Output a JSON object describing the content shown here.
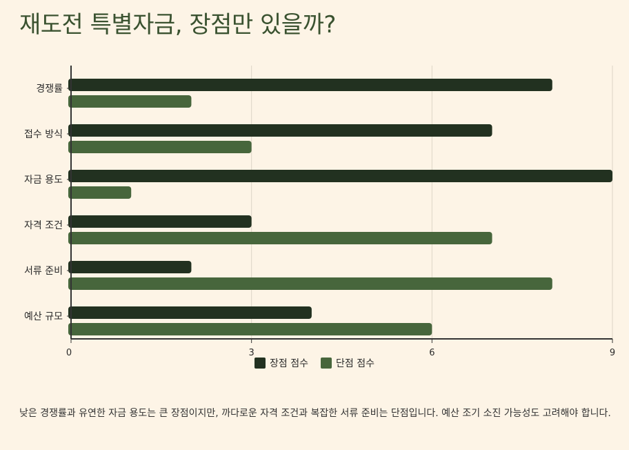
{
  "page": {
    "title": "재도전 특별자금, 장점만 있을까?",
    "caption": "낮은 경쟁률과 유연한 자금 용도는 큰 장점이지만, 까다로운 자격 조건과 복잡한 서류 준비는 단점입니다. 예산 조기 소진 가능성도 고려해야 합니다."
  },
  "chart_data": {
    "type": "bar",
    "orientation": "horizontal",
    "title": "",
    "xlabel": "",
    "ylabel": "",
    "categories": [
      "경쟁률",
      "접수 방식",
      "자금 용도",
      "자격 조건",
      "서류 준비",
      "예산 규모"
    ],
    "series": [
      {
        "name": "장점 점수",
        "values": [
          8,
          7,
          9,
          3,
          2,
          4
        ],
        "color": "#223120"
      },
      {
        "name": "단점 점수",
        "values": [
          2,
          3,
          1,
          7,
          8,
          6
        ],
        "color": "#47663c"
      }
    ],
    "xlim": [
      0,
      9
    ],
    "xticks": [
      0,
      3,
      6,
      9
    ],
    "grid": "vertical",
    "legend_position": "bottom"
  }
}
